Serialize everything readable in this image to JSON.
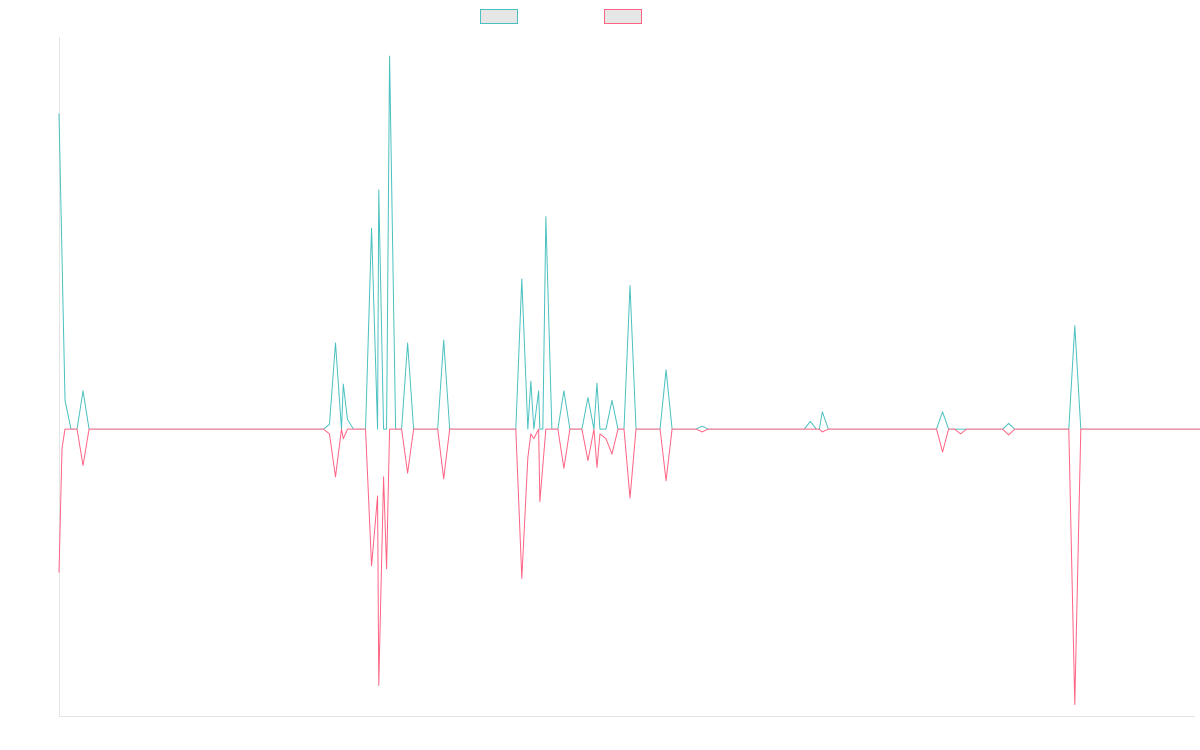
{
  "chart_data": {
    "type": "line",
    "x_count": 190,
    "ylim": [
      -30,
      41
    ],
    "zero": 0,
    "grid": false,
    "legend_placement": "top",
    "series": [
      {
        "name": "",
        "color": "#4bc0c0",
        "points": [
          [
            0,
            33
          ],
          [
            1,
            3
          ],
          [
            2,
            0
          ],
          [
            3,
            0
          ],
          [
            4,
            4
          ],
          [
            5,
            0
          ],
          [
            44,
            0
          ],
          [
            45,
            0.5
          ],
          [
            46,
            9
          ],
          [
            47,
            0
          ],
          [
            47.3,
            4.7
          ],
          [
            48,
            1
          ],
          [
            49,
            0
          ],
          [
            51,
            0
          ],
          [
            52,
            21
          ],
          [
            53,
            0
          ],
          [
            53.2,
            25
          ],
          [
            54,
            0
          ],
          [
            54.5,
            0
          ],
          [
            55,
            39
          ],
          [
            56,
            0
          ],
          [
            57,
            0
          ],
          [
            58,
            9
          ],
          [
            59,
            0
          ],
          [
            63,
            0
          ],
          [
            64,
            9.3
          ],
          [
            65,
            0
          ],
          [
            76,
            0
          ],
          [
            77,
            15.7
          ],
          [
            78,
            0
          ],
          [
            78.5,
            5
          ],
          [
            79,
            0
          ],
          [
            79.8,
            4
          ],
          [
            80,
            0
          ],
          [
            80.5,
            0
          ],
          [
            81,
            22.2
          ],
          [
            82,
            0
          ],
          [
            83,
            0
          ],
          [
            84,
            4
          ],
          [
            85,
            0
          ],
          [
            87,
            0
          ],
          [
            88,
            3.3
          ],
          [
            89,
            0
          ],
          [
            89.5,
            4.8
          ],
          [
            90,
            0
          ],
          [
            91,
            0
          ],
          [
            92,
            3
          ],
          [
            93,
            0
          ],
          [
            94,
            0
          ],
          [
            95,
            15
          ],
          [
            96,
            0
          ],
          [
            100,
            0
          ],
          [
            101,
            6.2
          ],
          [
            102,
            0
          ],
          [
            106,
            0
          ],
          [
            107,
            0.3
          ],
          [
            108,
            0
          ],
          [
            124,
            0
          ],
          [
            125,
            0.8
          ],
          [
            126,
            0
          ],
          [
            126.5,
            0
          ],
          [
            127,
            1.8
          ],
          [
            128,
            0
          ],
          [
            146,
            0
          ],
          [
            147,
            1.8
          ],
          [
            148,
            0
          ],
          [
            149,
            0
          ],
          [
            150,
            0
          ],
          [
            151,
            0
          ],
          [
            157,
            0
          ],
          [
            158,
            0.6
          ],
          [
            159,
            0
          ],
          [
            168,
            0
          ],
          [
            169,
            10.8
          ],
          [
            170,
            0
          ],
          [
            170.5,
            0
          ],
          [
            191,
            0
          ],
          [
            192,
            0.6
          ],
          [
            193,
            0
          ],
          [
            199,
            0
          ]
        ]
      },
      {
        "name": "",
        "color": "#ff6384",
        "points": [
          [
            0,
            -15
          ],
          [
            0.5,
            -2
          ],
          [
            1,
            0
          ],
          [
            2,
            0
          ],
          [
            3,
            0
          ],
          [
            4,
            -3.8
          ],
          [
            5,
            0
          ],
          [
            44,
            0
          ],
          [
            45,
            -0.5
          ],
          [
            46,
            -5
          ],
          [
            47,
            0
          ],
          [
            47.3,
            -1
          ],
          [
            48,
            0
          ],
          [
            49,
            0
          ],
          [
            51,
            0
          ],
          [
            52,
            -14.3
          ],
          [
            53,
            -7
          ],
          [
            53.2,
            -26.8
          ],
          [
            54,
            -5
          ],
          [
            54.5,
            -14.6
          ],
          [
            55,
            0
          ],
          [
            56,
            0
          ],
          [
            57,
            0
          ],
          [
            58,
            -4.6
          ],
          [
            59,
            0
          ],
          [
            63,
            0
          ],
          [
            64,
            -5.2
          ],
          [
            65,
            0
          ],
          [
            76,
            0
          ],
          [
            77,
            -15.6
          ],
          [
            78,
            -3
          ],
          [
            78.5,
            -0.5
          ],
          [
            79,
            -1
          ],
          [
            79.8,
            0
          ],
          [
            80,
            -7.6
          ],
          [
            81,
            0
          ],
          [
            82,
            0
          ],
          [
            83,
            0
          ],
          [
            84,
            -4.1
          ],
          [
            85,
            0
          ],
          [
            87,
            0
          ],
          [
            88,
            -3.3
          ],
          [
            89,
            0
          ],
          [
            89.5,
            -4
          ],
          [
            90,
            -0.5
          ],
          [
            91,
            -1
          ],
          [
            92,
            -2.6
          ],
          [
            93,
            0
          ],
          [
            94,
            0
          ],
          [
            95,
            -7.2
          ],
          [
            96,
            0
          ],
          [
            100,
            0
          ],
          [
            101,
            -5.4
          ],
          [
            102,
            0
          ],
          [
            106,
            0
          ],
          [
            107,
            -0.3
          ],
          [
            108,
            0
          ],
          [
            124,
            0
          ],
          [
            125,
            0
          ],
          [
            126,
            0
          ],
          [
            126.5,
            0
          ],
          [
            127,
            -0.3
          ],
          [
            128,
            0
          ],
          [
            146,
            0
          ],
          [
            147,
            -2.4
          ],
          [
            148,
            0
          ],
          [
            149,
            0
          ],
          [
            150,
            -0.5
          ],
          [
            151,
            0
          ],
          [
            157,
            0
          ],
          [
            158,
            -0.6
          ],
          [
            159,
            0
          ],
          [
            168,
            0
          ],
          [
            169,
            -28.8
          ],
          [
            170,
            0
          ],
          [
            170.5,
            0
          ],
          [
            191,
            0
          ],
          [
            192,
            0
          ],
          [
            193,
            0
          ],
          [
            199,
            0
          ]
        ]
      }
    ]
  }
}
